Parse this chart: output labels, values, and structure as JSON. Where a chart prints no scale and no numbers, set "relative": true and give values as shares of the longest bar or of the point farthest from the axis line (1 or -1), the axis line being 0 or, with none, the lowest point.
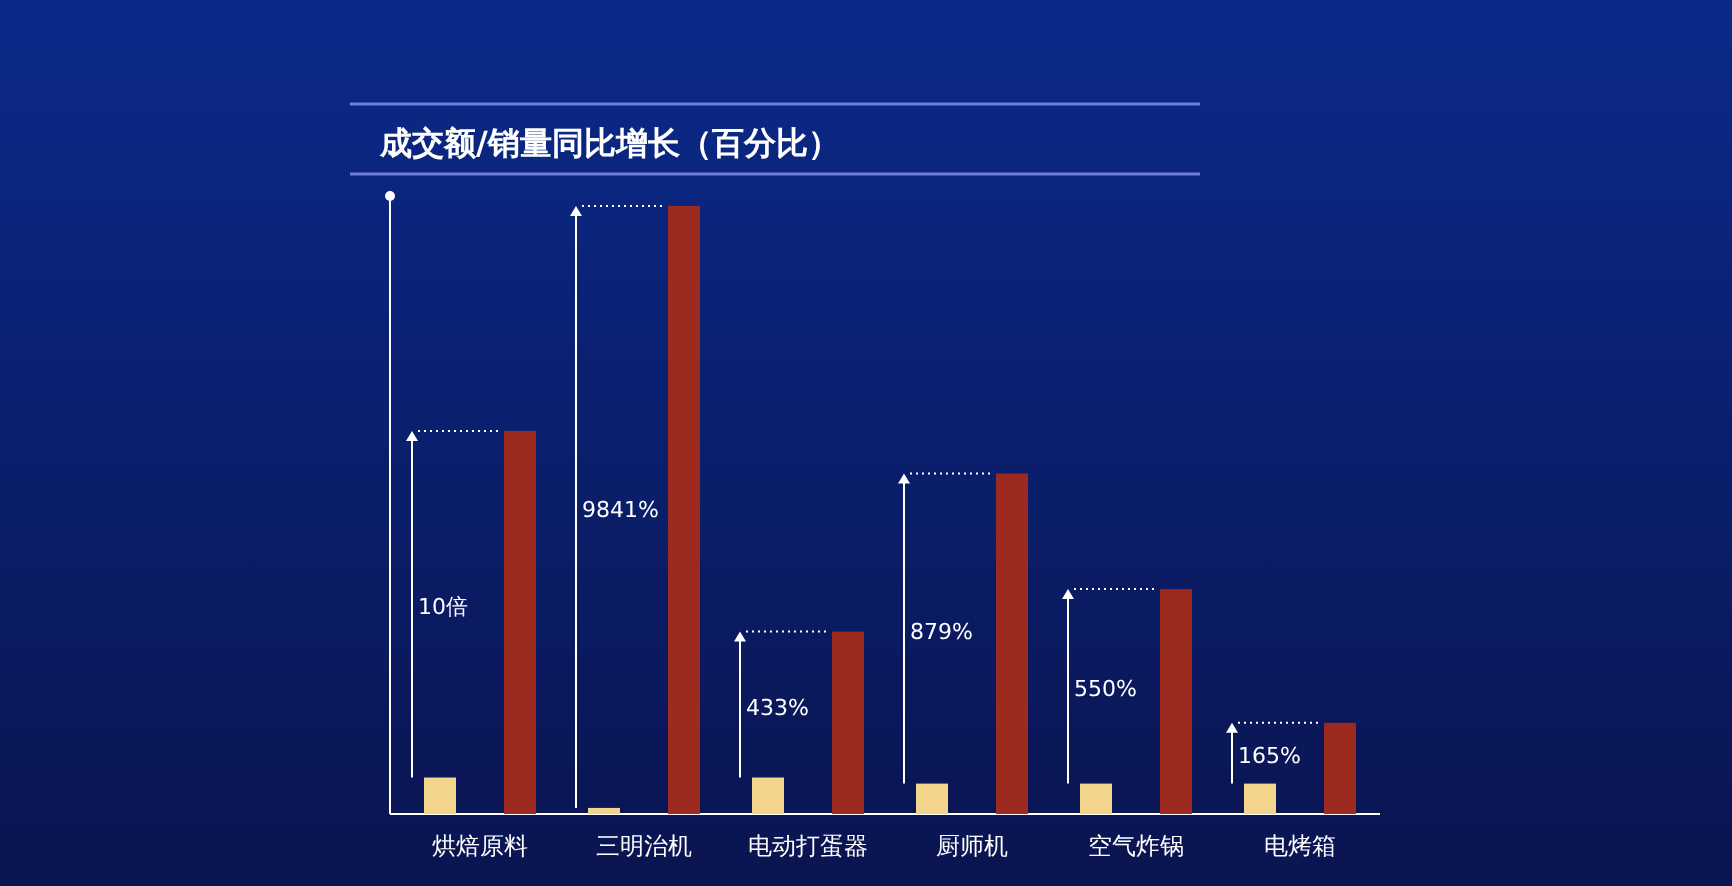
{
  "chart_data": {
    "type": "bar",
    "title": "成交额/销量同比增长（百分比）",
    "relative": true,
    "categories": [
      "烘焙原料",
      "三明治机",
      "电动打蛋器",
      "厨师机",
      "空气炸锅",
      "电烤箱"
    ],
    "series": [
      {
        "color": "#f2d48a",
        "values": [
          0.06,
          0.01,
          0.06,
          0.05,
          0.05,
          0.05
        ]
      },
      {
        "color": "#9c2a1e",
        "values": [
          0.63,
          1,
          0.3,
          0.56,
          0.37,
          0.15
        ]
      }
    ],
    "annotations": [
      "10倍",
      "9841%",
      "433%",
      "879%",
      "550%",
      "165%"
    ]
  }
}
